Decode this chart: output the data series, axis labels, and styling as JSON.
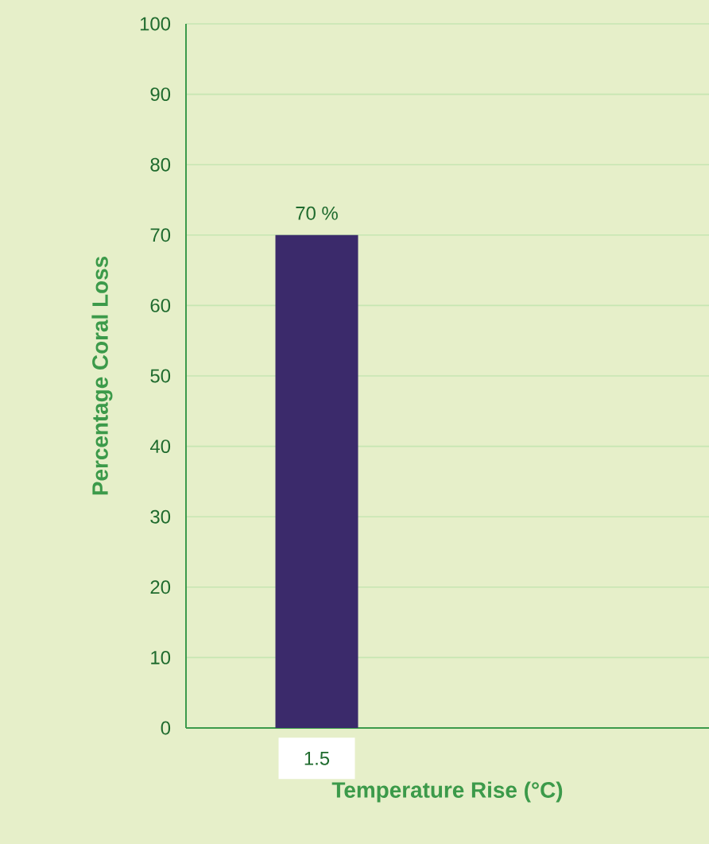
{
  "chart_data": {
    "type": "bar",
    "xlabel": "Temperature Rise (°C)",
    "ylabel": "Percentage Coral Loss",
    "categories": [
      "1.5",
      null
    ],
    "values": [
      70,
      null
    ],
    "value_labels": [
      "70 %",
      null
    ],
    "color": "#3b2a6b",
    "ylim": [
      0,
      100
    ],
    "yticks": [
      0,
      10,
      20,
      30,
      40,
      50,
      60,
      70,
      80,
      90,
      100
    ],
    "grid": "y"
  }
}
